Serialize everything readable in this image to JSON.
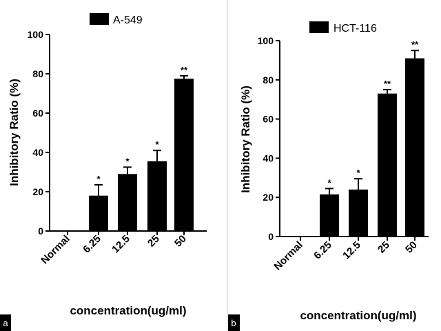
{
  "colors": {
    "bar": "#000000",
    "axis": "#000000",
    "background": "#ffffff",
    "panel_divider": "#cfcfcf"
  },
  "chart_data": [
    {
      "type": "bar",
      "panel_label": "a",
      "legend": "A-549",
      "legend_position": "top",
      "xlabel": "concentration(ug/ml)",
      "ylabel": "Inhibitory Ratio (%)",
      "ylim": [
        0,
        100
      ],
      "yticks": [
        "0",
        "20",
        "40",
        "60",
        "80",
        "100"
      ],
      "grid": false,
      "categories": [
        "Normal",
        "6.25",
        "12.5",
        "25",
        "50"
      ],
      "values": [
        0,
        18,
        29,
        35.5,
        77.5
      ],
      "errors": [
        0,
        5.5,
        3.5,
        5.5,
        1.5
      ],
      "significance": [
        "",
        "*",
        "*",
        "*",
        "**"
      ]
    },
    {
      "type": "bar",
      "panel_label": "b",
      "legend": "HCT-116",
      "legend_position": "top",
      "xlabel": "concentration(ug/ml)",
      "ylabel": "Inhibitory Ratio (%)",
      "ylim": [
        0,
        100
      ],
      "yticks": [
        "0",
        "20",
        "40",
        "60",
        "80",
        "100"
      ],
      "grid": false,
      "categories": [
        "Normal",
        "6.25",
        "12.5",
        "25",
        "50"
      ],
      "values": [
        0,
        21.5,
        24,
        73,
        91
      ],
      "errors": [
        0,
        3,
        5.5,
        2,
        4
      ],
      "significance": [
        "",
        "*",
        "*",
        "**",
        "**"
      ]
    }
  ]
}
